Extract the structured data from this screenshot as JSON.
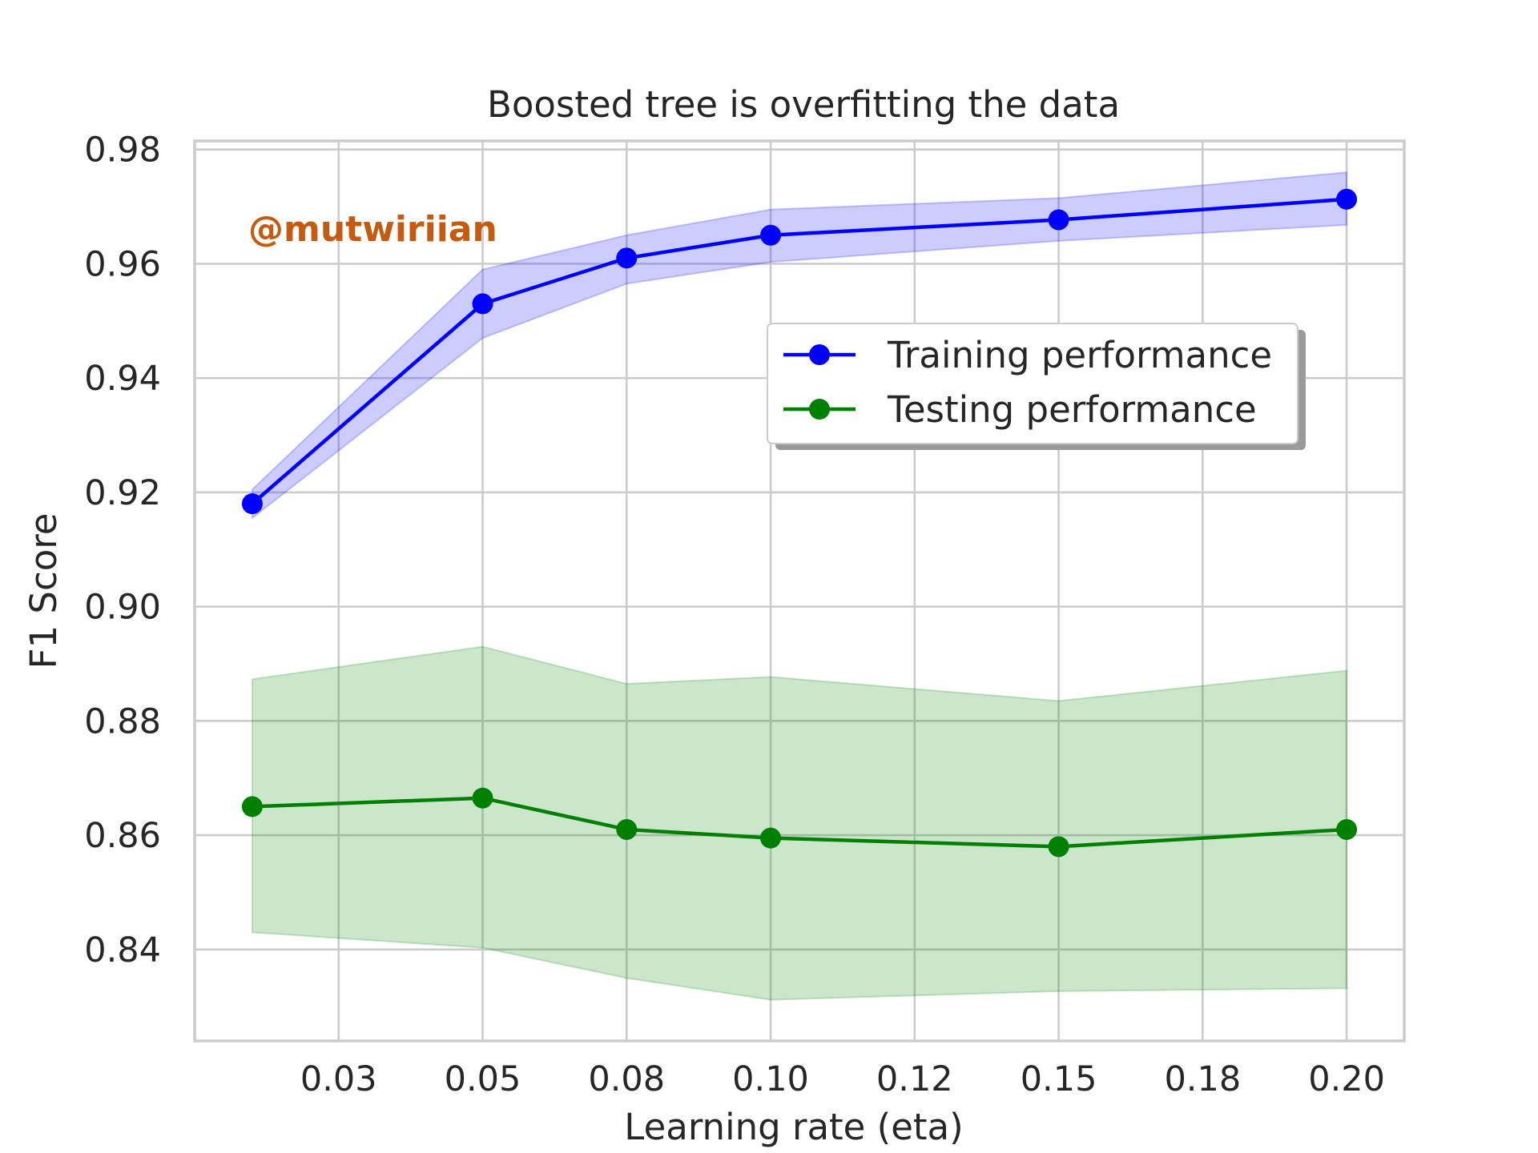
{
  "chart_data": {
    "type": "line",
    "title": "Boosted tree is overfitting the data",
    "xlabel": "Learning rate (eta)",
    "ylabel": "F1 Score",
    "watermark": "@mutwiriian",
    "x": [
      0.01,
      0.05,
      0.075,
      0.1,
      0.15,
      0.2
    ],
    "xticks": [
      {
        "value": 0.025,
        "label": "0.03"
      },
      {
        "value": 0.05,
        "label": "0.05"
      },
      {
        "value": 0.075,
        "label": "0.08"
      },
      {
        "value": 0.1,
        "label": "0.10"
      },
      {
        "value": 0.125,
        "label": "0.12"
      },
      {
        "value": 0.15,
        "label": "0.15"
      },
      {
        "value": 0.175,
        "label": "0.18"
      },
      {
        "value": 0.2,
        "label": "0.20"
      }
    ],
    "yticks": [
      {
        "value": 0.84,
        "label": "0.84"
      },
      {
        "value": 0.86,
        "label": "0.86"
      },
      {
        "value": 0.88,
        "label": "0.88"
      },
      {
        "value": 0.9,
        "label": "0.90"
      },
      {
        "value": 0.92,
        "label": "0.92"
      },
      {
        "value": 0.94,
        "label": "0.94"
      },
      {
        "value": 0.96,
        "label": "0.96"
      },
      {
        "value": 0.98,
        "label": "0.98"
      }
    ],
    "xlim": [
      0.0,
      0.21
    ],
    "ylim": [
      0.824,
      0.9815
    ],
    "grid": true,
    "legend_position": "upper-right",
    "series": [
      {
        "name": "Training performance",
        "color": "#0000ff",
        "band_color": "#0000ff",
        "values": [
          0.918,
          0.953,
          0.961,
          0.965,
          0.9677,
          0.9713
        ],
        "upper": [
          0.9205,
          0.959,
          0.965,
          0.9695,
          0.9715,
          0.976
        ],
        "lower": [
          0.9155,
          0.947,
          0.9565,
          0.9603,
          0.964,
          0.9668
        ]
      },
      {
        "name": "Testing performance",
        "color": "#008000",
        "band_color": "#008000",
        "values": [
          0.865,
          0.8665,
          0.861,
          0.8595,
          0.858,
          0.861
        ],
        "upper": [
          0.8873,
          0.893,
          0.8865,
          0.8877,
          0.8835,
          0.8888
        ],
        "lower": [
          0.843,
          0.8403,
          0.835,
          0.8312,
          0.8327,
          0.8332
        ]
      }
    ]
  },
  "colors": {
    "watermark": "#c55a11",
    "grid": "#cccccc",
    "text": "#262626"
  }
}
